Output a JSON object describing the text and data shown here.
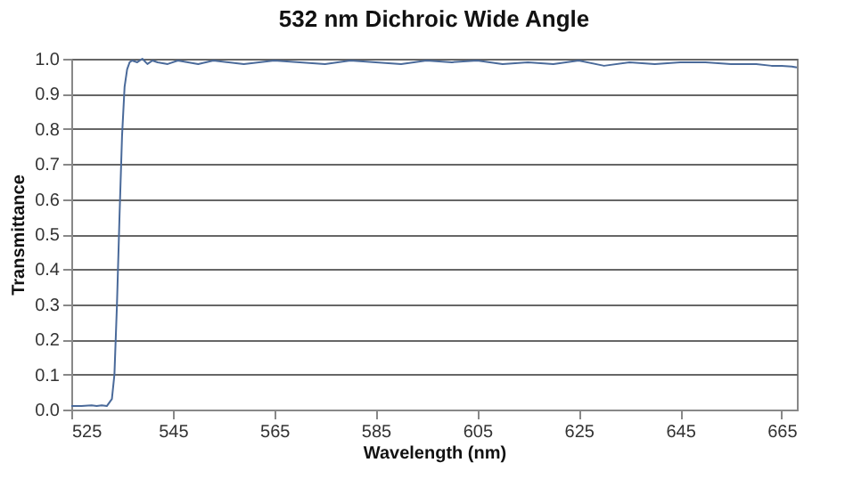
{
  "chart_data": {
    "type": "line",
    "title": "532 nm Dichroic Wide Angle",
    "xlabel": "Wavelength (nm)",
    "ylabel": "Transmittance",
    "xlim": [
      525,
      668
    ],
    "xticks": [
      525,
      545,
      565,
      585,
      605,
      625,
      645,
      665
    ],
    "ylim": [
      0,
      1
    ],
    "yticks": [
      {
        "value": 0,
        "label": "0.0"
      },
      0.1,
      0.2,
      0.3,
      0.4,
      0.5,
      0.6,
      0.7,
      0.8,
      0.9,
      {
        "value": 1,
        "label": "1.0"
      }
    ],
    "grid": "y",
    "marker": "none",
    "line_style": "solid",
    "series": [
      {
        "color": "#4a6a9a",
        "x": [
          525,
          527,
          529,
          530,
          531,
          532,
          533,
          533.5,
          534,
          534.5,
          535,
          535.5,
          536,
          536.5,
          537,
          538,
          539,
          540,
          541,
          542,
          544,
          546,
          548,
          550,
          553,
          556,
          559,
          562,
          565,
          570,
          575,
          580,
          585,
          590,
          595,
          600,
          605,
          610,
          615,
          620,
          625,
          630,
          635,
          640,
          645,
          650,
          655,
          660,
          663,
          665,
          667,
          668
        ],
        "values": [
          0.01,
          0.01,
          0.012,
          0.01,
          0.012,
          0.01,
          0.03,
          0.1,
          0.3,
          0.55,
          0.78,
          0.92,
          0.97,
          0.99,
          0.995,
          0.99,
          1.0,
          0.985,
          0.995,
          0.99,
          0.985,
          0.995,
          0.99,
          0.985,
          0.995,
          0.99,
          0.985,
          0.99,
          0.995,
          0.99,
          0.985,
          0.995,
          0.99,
          0.985,
          0.995,
          0.99,
          0.995,
          0.985,
          0.99,
          0.985,
          0.995,
          0.98,
          0.99,
          0.985,
          0.99,
          0.99,
          0.985,
          0.985,
          0.98,
          0.98,
          0.978,
          0.975
        ]
      }
    ]
  }
}
